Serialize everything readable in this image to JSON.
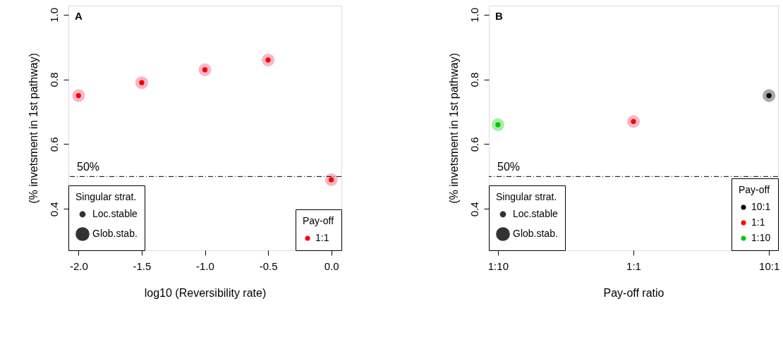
{
  "chart_data": [
    {
      "type": "bubble",
      "title": "A",
      "xlabel": "log10 (Reversibility rate)",
      "ylabel": "(% invetsment in 1st pathway)",
      "legend_title": [
        "Singular strat.",
        "Pay-off"
      ],
      "legend": [
        "bottom left",
        "bottom right"
      ],
      "marker": "circle",
      "grid": false,
      "x": [
        -2.0,
        -1.5,
        -1.0,
        -0.5,
        0.0
      ],
      "xlim": [
        -2.08,
        0.08
      ],
      "xticks": [
        {
          "value": -2,
          "label": "-2.0"
        },
        {
          "value": -1.5,
          "label": "-1.5"
        },
        {
          "value": -1,
          "label": "-1.0"
        },
        {
          "value": -0.5,
          "label": "-0.5"
        },
        {
          "value": 0,
          "label": "0.0"
        }
      ],
      "ylim": [
        0.272,
        1.028
      ],
      "yticks": [
        0.4,
        0.6,
        0.8,
        {
          "value": 1,
          "label": "1.0"
        }
      ],
      "size_legend": [
        {
          "value": 0.16,
          "label": "Loc.stable"
        },
        {
          "value": 1,
          "label": "Glob.stab."
        }
      ],
      "series": [
        {
          "color": "#f7b8c6",
          "values": [
            0.75,
            0.79,
            0.83,
            0.86,
            0.49
          ],
          "sizes": [
            1,
            1,
            1,
            1,
            1
          ]
        },
        {
          "name": "1:1",
          "color": "#ff0000",
          "values": [
            0.75,
            0.79,
            0.83,
            0.86,
            0.49
          ],
          "sizes": [
            0.16,
            0.16,
            0.16,
            0.16,
            0.16
          ]
        }
      ],
      "ref_lines": [
        {
          "axis": "y",
          "value": 0.5,
          "label": "50%",
          "line_style": "dashed",
          "color": "#000000"
        }
      ]
    },
    {
      "type": "bubble",
      "title": "B",
      "xlabel": "Pay-off ratio",
      "ylabel": "(% invetsment in 1st pathway)",
      "legend_title": [
        "Singular strat.",
        "Pay-off"
      ],
      "legend": [
        "bottom left",
        "bottom right"
      ],
      "marker": "circle",
      "grid": false,
      "categories": [
        "1:10",
        "1:1",
        "10:1"
      ],
      "ylim": [
        0.272,
        1.028
      ],
      "yticks": [
        0.4,
        0.6,
        0.8,
        {
          "value": 1,
          "label": "1.0"
        }
      ],
      "size_legend": [
        {
          "value": 0.16,
          "label": "Loc.stable"
        },
        {
          "value": 1,
          "label": "Glob.stab."
        }
      ],
      "series": [
        {
          "colors": [
            "#a6eea6",
            "#f7b8c6",
            "#a9a9a9"
          ],
          "values": [
            0.66,
            0.67,
            0.75
          ],
          "sizes": [
            1,
            1,
            1
          ]
        },
        {
          "name": "10:1",
          "color": "#000000",
          "values": [
            null,
            null,
            0.75
          ],
          "sizes": [
            null,
            null,
            0.16
          ]
        },
        {
          "name": "1:1",
          "color": "#ff0000",
          "values": [
            null,
            0.67,
            null
          ],
          "sizes": [
            null,
            0.16,
            null
          ]
        },
        {
          "name": "1:10",
          "color": "#00cc00",
          "values": [
            0.66,
            null,
            null
          ],
          "sizes": [
            0.16,
            null,
            null
          ]
        }
      ],
      "ref_lines": [
        {
          "axis": "y",
          "value": 0.5,
          "label": "50%",
          "line_style": "dashed",
          "color": "#000000"
        }
      ]
    }
  ]
}
